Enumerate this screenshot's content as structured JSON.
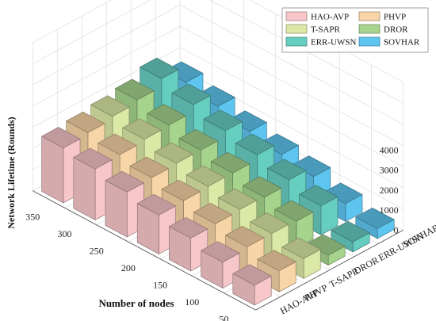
{
  "chart_data": {
    "type": "bar3d",
    "zlabel": "Network Lifetime (Rounds)",
    "xlabel": "Number of nodes",
    "zlim": [
      0,
      4000
    ],
    "z_ticks": [
      "0",
      "1000",
      "2000",
      "3000",
      "4000"
    ],
    "categories": [
      "50",
      "100",
      "150",
      "200",
      "250",
      "300",
      "350"
    ],
    "grid": true,
    "legend_position": "top-right",
    "series": [
      {
        "name": "HAO-AVP",
        "color": "#f7c6c9",
        "values": [
          1000,
          1300,
          1650,
          1950,
          2250,
          2550,
          2750
        ]
      },
      {
        "name": "PHVP",
        "color": "#f7d5a6",
        "values": [
          1050,
          1400,
          1700,
          2000,
          2300,
          2600,
          2850
        ]
      },
      {
        "name": "T-SAPR",
        "color": "#dce9a6",
        "values": [
          1000,
          1400,
          1750,
          2050,
          2350,
          2700,
          3000
        ]
      },
      {
        "name": "DROR",
        "color": "#a6d48d",
        "values": [
          500,
          1350,
          1700,
          2050,
          2350,
          2750,
          3150
        ]
      },
      {
        "name": "ERR-UWSN",
        "color": "#66cdc1",
        "values": [
          500,
          1450,
          1900,
          2300,
          2650,
          3100,
          3550
        ]
      },
      {
        "name": "SOVHAR",
        "color": "#5ec5f0",
        "values": [
          500,
          900,
          1400,
          1650,
          1950,
          2350,
          2700
        ]
      }
    ]
  }
}
